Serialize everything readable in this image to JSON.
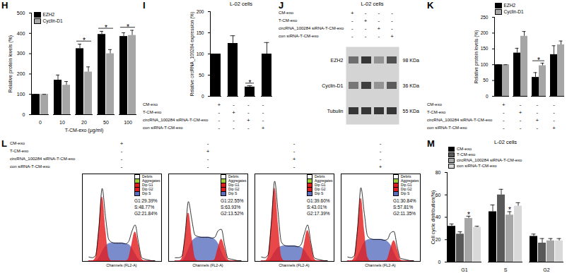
{
  "chart_data": [
    {
      "panel": "H",
      "type": "bar",
      "ylabel": "Relative protein levels (%)",
      "xlabel": "T-CM-exo (μg/ml)",
      "categories": [
        "0",
        "10",
        "20",
        "50",
        "100"
      ],
      "series": [
        {
          "name": "EZH2",
          "color": "#000000",
          "values": [
            100,
            170,
            325,
            395,
            385
          ],
          "errors": [
            0,
            25,
            22,
            15,
            18
          ]
        },
        {
          "name": "Cyclin-D1",
          "color": "#a6a6a6",
          "values": [
            100,
            145,
            210,
            300,
            390
          ],
          "errors": [
            0,
            18,
            25,
            20,
            25
          ]
        }
      ],
      "ylim": [
        0,
        500
      ],
      "yticks": [
        0,
        100,
        200,
        300,
        400,
        500
      ],
      "legend": "top-left",
      "annotations": [
        {
          "index": 2,
          "text": "*"
        },
        {
          "index": 3,
          "text": "*"
        },
        {
          "index": 4,
          "text": "*"
        }
      ]
    },
    {
      "panel": "I",
      "type": "bar",
      "title": "L-02 cells",
      "ylabel": "Relative circRNA_100284 expression (%)",
      "categories": [
        null,
        null,
        null,
        null
      ],
      "values": [
        100,
        125,
        22,
        100
      ],
      "errors": [
        0,
        18,
        3,
        27
      ],
      "color": "#000000",
      "ylim": [
        0,
        200
      ],
      "yticks": [
        0,
        50,
        100,
        150,
        200
      ],
      "annotations": [
        {
          "index": 2,
          "text": "*"
        }
      ],
      "conditions": {
        "labels": [
          "CM-exo",
          "T-CM-exo",
          "circRNA_100284 siRNA-T-CM-exo",
          "con siRNA-T-CM-exo"
        ],
        "signs": [
          [
            "+",
            "-",
            "-",
            "-"
          ],
          [
            "-",
            "+",
            "-",
            "-"
          ],
          [
            "-",
            "-",
            "+",
            "-"
          ],
          [
            "-",
            "-",
            "-",
            "+"
          ]
        ]
      }
    },
    {
      "panel": "J",
      "type": "blot",
      "title": "L-02 cells",
      "conditions": {
        "labels": [
          "CM-exo",
          "T-CM-exo",
          "circRNA_100284 siRNA-T-CM-exo",
          "con siRNA-T-CM-exo"
        ],
        "signs": [
          [
            "+",
            "-",
            "-",
            "-"
          ],
          [
            "-",
            "+",
            "-",
            "-"
          ],
          [
            "-",
            "-",
            "+",
            "-"
          ],
          [
            "-",
            "-",
            "-",
            "+"
          ]
        ]
      },
      "bands": [
        {
          "label": "EZH2",
          "size": "98 KDa",
          "intensities": [
            0.55,
            0.85,
            0.35,
            0.7
          ]
        },
        {
          "label": "Cyclin-D1",
          "size": "36 KDa",
          "intensities": [
            0.5,
            0.8,
            0.35,
            0.65
          ]
        },
        {
          "label": "Tubulin",
          "size": "55 KDa",
          "intensities": [
            0.85,
            0.85,
            0.85,
            0.85
          ]
        }
      ]
    },
    {
      "panel": "K",
      "type": "bar",
      "ylabel": "Relative protein levels (%)",
      "categories": [
        null,
        null,
        null,
        null
      ],
      "series": [
        {
          "name": "EZH2",
          "color": "#000000",
          "values": [
            100,
            137,
            60,
            132
          ],
          "errors": [
            0,
            15,
            15,
            28
          ]
        },
        {
          "name": "Cyclin-D1",
          "color": "#a6a6a6",
          "values": [
            100,
            190,
            97,
            163
          ],
          "errors": [
            0,
            15,
            8,
            12
          ]
        }
      ],
      "ylim": [
        0,
        250
      ],
      "yticks": [
        0,
        50,
        100,
        150,
        200,
        250
      ],
      "legend": "top-left",
      "annotations": [
        {
          "index": 2,
          "text": "*"
        }
      ],
      "conditions": {
        "labels": [
          "CM-exo",
          "T-CM-exo",
          "circRNA_100284 siRNA-T-CM-exo",
          "con siRNA-T-CM-exo"
        ],
        "signs": [
          [
            "+",
            "-",
            "-",
            "-"
          ],
          [
            "-",
            "+",
            "-",
            "-"
          ],
          [
            "-",
            "-",
            "+",
            "-"
          ],
          [
            "-",
            "-",
            "-",
            "+"
          ]
        ]
      }
    },
    {
      "panel": "L",
      "type": "area",
      "xlabel": "Channels (FL2-A)",
      "x": [
        30,
        35,
        40,
        45,
        50,
        55,
        60,
        65,
        70,
        75,
        80,
        85,
        90,
        95,
        100,
        105,
        110,
        115,
        120,
        125,
        130
      ],
      "xlim": [
        20,
        140
      ],
      "ylim": [
        0,
        120
      ],
      "tick_labels": false,
      "legend": "top-right",
      "legend_extra": [
        {
          "name": "Debris",
          "color": "#ffffff"
        },
        {
          "name": "Aggregates",
          "color": "#9acd32"
        }
      ],
      "series": [
        {
          "name": "Dip G1",
          "color": "#e31a1c"
        },
        {
          "name": "Dip G2",
          "color": "#e31a1c"
        },
        {
          "name": "Dip S",
          "color": "#5a6fc0"
        }
      ],
      "histograms": [
        {
          "stats": [
            "G1:29.39%",
            "S:48.77%",
            "G2:21.84%"
          ],
          "values": [
            [
              0,
              0,
              4,
              40,
              88,
              42,
              5,
              0,
              0,
              0,
              0,
              0,
              0,
              0,
              0,
              0,
              0,
              0,
              0,
              0,
              0
            ],
            [
              0,
              0,
              0,
              0,
              0,
              0,
              0,
              0,
              0,
              0,
              0,
              0,
              3,
              22,
              40,
              22,
              3,
              0,
              0,
              0,
              0
            ],
            [
              0,
              0,
              0,
              4,
              12,
              20,
              24,
              25,
              25,
              25,
              25,
              24,
              23,
              18,
              10,
              3,
              0,
              0,
              0,
              0,
              0
            ]
          ],
          "total": [
            6,
            5,
            8,
            46,
            100,
            62,
            30,
            26,
            25,
            25,
            25,
            24,
            27,
            41,
            50,
            26,
            5,
            3,
            2,
            1,
            1
          ]
        },
        {
          "stats": [
            "G1:22.55%",
            "S:63.93%",
            "G2:13.52%"
          ],
          "values": [
            [
              0,
              0,
              3,
              30,
              66,
              32,
              4,
              0,
              0,
              0,
              0,
              0,
              0,
              0,
              0,
              0,
              0,
              0,
              0,
              0,
              0
            ],
            [
              0,
              0,
              0,
              0,
              0,
              0,
              0,
              0,
              0,
              0,
              0,
              0,
              2,
              17,
              30,
              17,
              2,
              0,
              0,
              0,
              0
            ],
            [
              0,
              0,
              0,
              5,
              15,
              26,
              31,
              33,
              33,
              33,
              33,
              32,
              30,
              24,
              13,
              4,
              0,
              0,
              0,
              0,
              0
            ]
          ],
          "total": [
            5,
            5,
            7,
            37,
            82,
            58,
            36,
            34,
            33,
            33,
            33,
            32,
            33,
            42,
            44,
            22,
            4,
            3,
            2,
            1,
            1
          ]
        },
        {
          "stats": [
            "G1:39.60%",
            "S:43.01%",
            "G2:17.39%"
          ],
          "values": [
            [
              0,
              0,
              5,
              48,
              100,
              50,
              6,
              0,
              0,
              0,
              0,
              0,
              0,
              0,
              0,
              0,
              0,
              0,
              0,
              0,
              0
            ],
            [
              0,
              0,
              0,
              0,
              0,
              0,
              0,
              0,
              0,
              0,
              0,
              0,
              3,
              22,
              42,
              22,
              3,
              0,
              0,
              0,
              0
            ],
            [
              0,
              0,
              0,
              4,
              12,
              18,
              20,
              21,
              21,
              21,
              21,
              20,
              19,
              15,
              8,
              2,
              0,
              0,
              0,
              0,
              0
            ]
          ],
          "total": [
            6,
            5,
            9,
            53,
            110,
            69,
            27,
            22,
            21,
            21,
            21,
            20,
            23,
            38,
            50,
            25,
            5,
            3,
            2,
            1,
            1
          ]
        },
        {
          "stats": [
            "G1:30.84%",
            "S:57.81%",
            "G2:11.35%"
          ],
          "values": [
            [
              0,
              0,
              4,
              40,
              86,
              41,
              5,
              0,
              0,
              0,
              0,
              0,
              0,
              0,
              0,
              0,
              0,
              0,
              0,
              0,
              0
            ],
            [
              0,
              0,
              0,
              0,
              0,
              0,
              0,
              0,
              0,
              0,
              0,
              0,
              2,
              16,
              28,
              16,
              2,
              0,
              0,
              0,
              0
            ],
            [
              0,
              0,
              0,
              5,
              15,
              25,
              29,
              30,
              30,
              30,
              30,
              29,
              27,
              22,
              12,
              3,
              0,
              0,
              0,
              0,
              0
            ]
          ],
          "total": [
            6,
            5,
            8,
            46,
            101,
            67,
            35,
            31,
            30,
            30,
            30,
            29,
            30,
            39,
            41,
            20,
            4,
            3,
            2,
            1,
            1
          ]
        }
      ],
      "conditions": {
        "labels": [
          "CM-exo",
          "T-CM-exo",
          "circRNA_100284 siRNA-T-CM-exo",
          "con siRNA-T-CM-exo"
        ],
        "signs": [
          [
            "+",
            "-",
            "-",
            "-"
          ],
          [
            "-",
            "+",
            "-",
            "-"
          ],
          [
            "-",
            "-",
            "+",
            "-"
          ],
          [
            "-",
            "-",
            "-",
            "+"
          ]
        ]
      }
    },
    {
      "panel": "M",
      "type": "bar",
      "title": "L-02 cells",
      "ylabel": "Cell cycle distribution(%)",
      "categories": [
        "G1",
        "S",
        "G2"
      ],
      "series": [
        {
          "name": "CM-exo",
          "color": "#000000",
          "values": [
            32,
            45,
            23
          ],
          "errors": [
            2,
            6,
            2
          ]
        },
        {
          "name": "T-CM-exo",
          "color": "#595959",
          "values": [
            25,
            60,
            17
          ],
          "errors": [
            2,
            5,
            4
          ]
        },
        {
          "name": "circRNA_100284 siRNA-T-CM-exo",
          "color": "#a6a6a6",
          "values": [
            39,
            42,
            19
          ],
          "errors": [
            2,
            3,
            2
          ]
        },
        {
          "name": "con siRNA-T-CM-exo",
          "color": "#d9d9d9",
          "values": [
            31,
            50,
            19
          ],
          "errors": [
            1,
            3,
            2
          ]
        }
      ],
      "ylim": [
        0,
        80
      ],
      "yticks": [
        0,
        20,
        40,
        60,
        80
      ],
      "legend": "top-left",
      "annotations": [
        {
          "index": 0,
          "series": "circRNA_100284 siRNA-T-CM-exo",
          "text": "*"
        },
        {
          "index": 1,
          "series": "circRNA_100284 siRNA-T-CM-exo",
          "text": "*"
        }
      ]
    }
  ]
}
